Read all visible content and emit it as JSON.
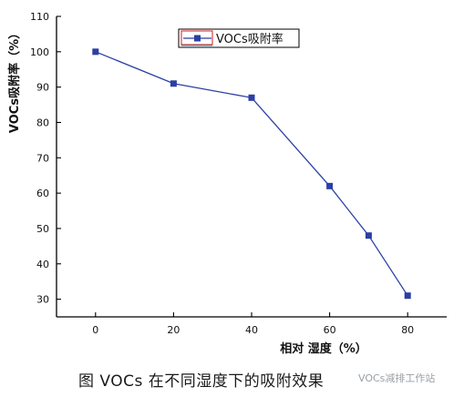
{
  "chart_data": {
    "type": "line",
    "x": [
      0,
      20,
      40,
      60,
      70,
      80
    ],
    "series": [
      {
        "name": "VOCs吸附率",
        "values": [
          100,
          91,
          87,
          62,
          48,
          31
        ]
      }
    ],
    "xlabel": "相对 湿度（%）",
    "ylabel": "VOCs吸附率（%）",
    "xticks": [
      0,
      20,
      40,
      60,
      80
    ],
    "yticks": [
      30,
      40,
      50,
      60,
      70,
      80,
      90,
      100,
      110
    ],
    "xlim": [
      -10,
      90
    ],
    "ylim": [
      25,
      110
    ],
    "legend": "top-center",
    "grid": false,
    "line_color": "#2b3fa5"
  },
  "caption": "图   VOCs 在不同湿度下的吸附效果",
  "watermark": "VOCs减排工作站"
}
